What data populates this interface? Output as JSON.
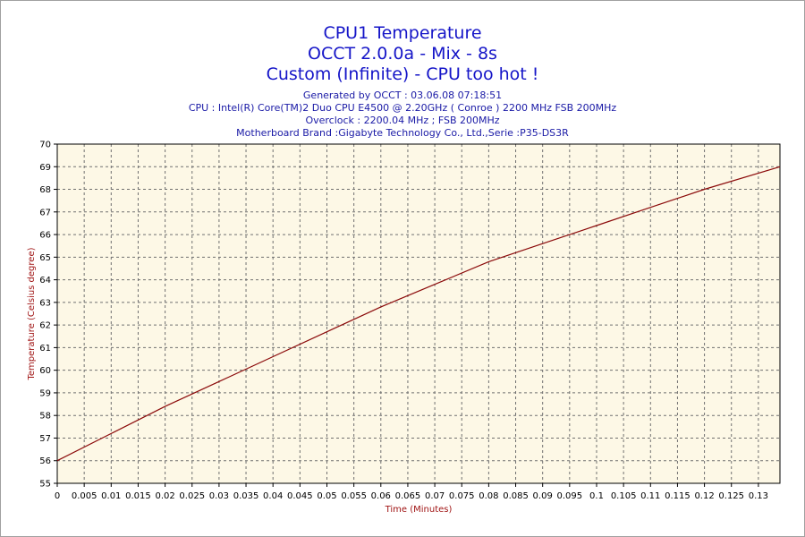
{
  "header": {
    "titles": [
      "CPU1 Temperature",
      "OCCT 2.0.0a - Mix - 8s",
      "Custom (Infinite) - CPU too hot !"
    ],
    "info": [
      "Generated by OCCT : 03.06.08 07:18:51",
      "CPU : Intel(R) Core(TM)2 Duo CPU E4500 @ 2.20GHz ( Conroe ) 2200 MHz FSB 200MHz",
      "Overclock : 2200.04 MHz ; FSB 200MHz",
      "Motherboard Brand :Gigabyte Technology Co., Ltd.,Serie :P35-DS3R"
    ]
  },
  "chart_data": {
    "type": "line",
    "title": "CPU1 Temperature",
    "xlabel": "Time (Minutes)",
    "ylabel": "Temperature (Celsius degree)",
    "xlim": [
      0,
      0.134
    ],
    "ylim": [
      55,
      70
    ],
    "x_ticks": [
      "0",
      "0.005",
      "0.01",
      "0.015",
      "0.02",
      "0.025",
      "0.03",
      "0.035",
      "0.04",
      "0.045",
      "0.05",
      "0.055",
      "0.06",
      "0.065",
      "0.07",
      "0.075",
      "0.08",
      "0.085",
      "0.09",
      "0.095",
      "0.1",
      "0.105",
      "0.11",
      "0.115",
      "0.12",
      "0.125",
      "0.13"
    ],
    "y_ticks": [
      "55",
      "56",
      "57",
      "58",
      "59",
      "60",
      "61",
      "62",
      "63",
      "64",
      "65",
      "66",
      "67",
      "68",
      "69",
      "70"
    ],
    "grid": true,
    "series": [
      {
        "x": [
          0,
          0.01,
          0.02,
          0.03,
          0.04,
          0.05,
          0.06,
          0.07,
          0.08,
          0.09,
          0.1,
          0.11,
          0.12,
          0.134
        ],
        "values": [
          56.0,
          57.2,
          58.4,
          59.5,
          60.6,
          61.7,
          62.8,
          63.8,
          64.8,
          65.6,
          66.4,
          67.2,
          68.0,
          69.0
        ]
      }
    ],
    "colors": {
      "plot_background": "#fdf8e6",
      "grid": "#707070",
      "series_line": "#8b0a0a",
      "title_text": "#1515c8",
      "axis_title_text": "#a01515"
    }
  }
}
